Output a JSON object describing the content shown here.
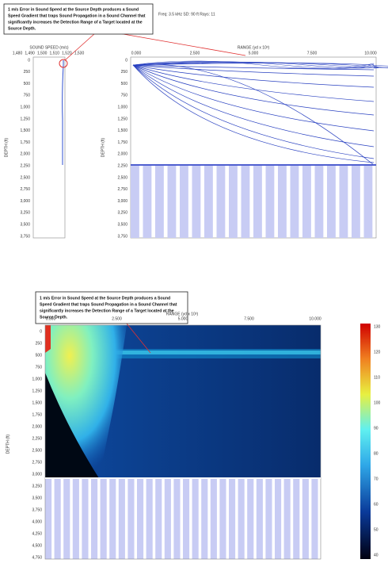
{
  "top_panel": {
    "annotation": [
      "1 m/s Error in Sound Speed at the Source Depth produces a Sound",
      "Speed Gradient that traps Sound Propagation in a Sound Channel that",
      "significantly increases the Detection Range of a Target located at the",
      "Source Depth."
    ],
    "header": "Freq: 3.5 kHz   SD: 90 ft   Rays: 11",
    "svp_axis_title": "SOUND SPEED (m/s)",
    "svp_ticks": [
      "1,480",
      "1,490",
      "1,500",
      "1,510",
      "1,520",
      "1,530"
    ],
    "range_axis_title": "RANGE (yd x 10³)",
    "range_ticks": [
      "0.000",
      "2.500",
      "5.000",
      "7.500",
      "10.000"
    ],
    "depth_axis_title": "DEPTH (ft)",
    "depth_ticks": [
      "0",
      "250",
      "500",
      "750",
      "1,000",
      "1,250",
      "1,500",
      "1,750",
      "2,000",
      "2,250",
      "2,500",
      "2,750",
      "3,000",
      "3,250",
      "3,500",
      "3,750"
    ]
  },
  "bottom_panel": {
    "annotation": [
      "1 m/s Error in Sound Speed at the Source Depth produces a Sound",
      "Speed Gradient that traps Sound Propagation in a Sound Channel that",
      "significantly increases the Detection Range of a Target located at the",
      "Source Depth."
    ],
    "range_axis_title": "RANGE (yd x 10³)",
    "range_ticks": [
      "0.000",
      "2.500",
      "5.000",
      "7.500",
      "10.000"
    ],
    "depth_axis_title": "DEPTH (ft)",
    "depth_ticks": [
      "0",
      "250",
      "500",
      "750",
      "1,000",
      "1,250",
      "1,500",
      "1,750",
      "2,000",
      "2,250",
      "2,500",
      "2,750",
      "3,000",
      "3,250",
      "3,500",
      "3,750",
      "4,000",
      "4,250",
      "4,500",
      "4,750"
    ],
    "colorbar_ticks": [
      "40",
      "50",
      "60",
      "70",
      "80",
      "90",
      "100",
      "110",
      "120",
      "130"
    ]
  }
}
